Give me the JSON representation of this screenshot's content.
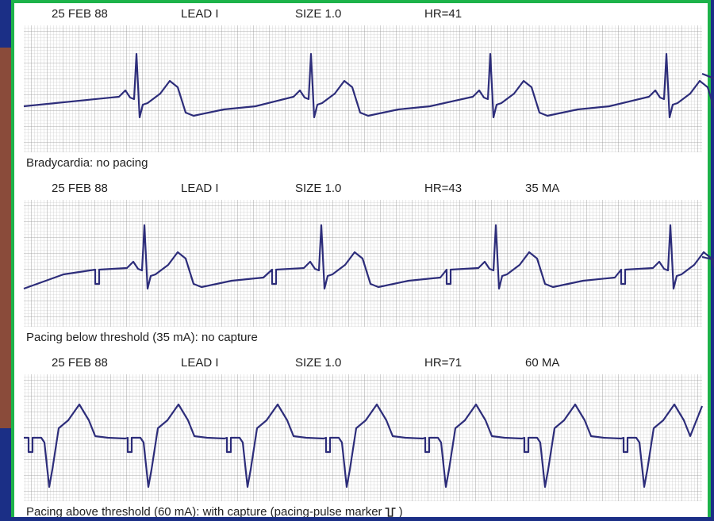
{
  "strips": [
    {
      "date": "25 FEB 88",
      "lead": "LEAD I",
      "size": "SIZE 1.0",
      "hr": "HR=41",
      "caption": "Bradycardia: no pacing"
    },
    {
      "date": "25 FEB 88",
      "lead": "LEAD I",
      "size": "SIZE 1.0",
      "hr": "HR=43",
      "current": "35 MA",
      "caption": "Pacing below threshold (35 mA): no capture"
    },
    {
      "date": "25 FEB 88",
      "lead": "LEAD I",
      "size": "SIZE 1.0",
      "hr": "HR=71",
      "current": "60 MA",
      "caption": "Pacing above threshold (60 mA): with capture (pacing-pulse marker",
      "caption_end": ")"
    }
  ]
}
